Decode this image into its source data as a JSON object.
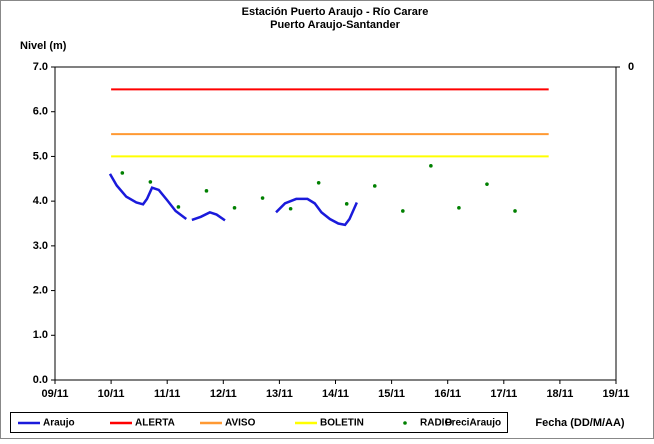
{
  "chart_data": {
    "type": "line",
    "title": "Estación Puerto Araujo - Río Carare",
    "subtitle": "Puerto Araujo-Santander",
    "y_label": "Nivel (m)",
    "x_label": "Fecha (DD/M/AA)",
    "xlim": [
      9,
      19
    ],
    "xticks": [
      {
        "value": 9,
        "label": "09/11"
      },
      {
        "value": 10,
        "label": "10/11"
      },
      {
        "value": 11,
        "label": "11/11"
      },
      {
        "value": 12,
        "label": "12/11"
      },
      {
        "value": 13,
        "label": "13/11"
      },
      {
        "value": 14,
        "label": "14/11"
      },
      {
        "value": 15,
        "label": "15/11"
      },
      {
        "value": 16,
        "label": "16/11"
      },
      {
        "value": 17,
        "label": "17/11"
      },
      {
        "value": 18,
        "label": "18/11"
      },
      {
        "value": 19,
        "label": "19/11"
      }
    ],
    "ylim": [
      0,
      7
    ],
    "yticks": [
      {
        "value": 0,
        "label": "0.0"
      },
      {
        "value": 1,
        "label": "1.0"
      },
      {
        "value": 2,
        "label": "2.0"
      },
      {
        "value": 3,
        "label": "3.0"
      },
      {
        "value": 4,
        "label": "4.0"
      },
      {
        "value": 5,
        "label": "5.0"
      },
      {
        "value": 6,
        "label": "6.0"
      },
      {
        "value": 7,
        "label": "7.0"
      }
    ],
    "y2ticks": [
      0
    ],
    "series": [
      {
        "name": "Araujo",
        "color": "#1a1adb",
        "kind": "line",
        "x": [
          9.98,
          10.1,
          10.27,
          10.45,
          10.57,
          10.64,
          10.73,
          10.85,
          11.0,
          11.15,
          11.34,
          null,
          11.44,
          11.6,
          11.76,
          11.88,
          12.03,
          null,
          12.94,
          13.1,
          13.3,
          13.5,
          13.63,
          13.75,
          13.9,
          14.05,
          14.17,
          14.25,
          14.38
        ],
        "values": [
          4.61,
          4.35,
          4.1,
          3.97,
          3.93,
          4.05,
          4.3,
          4.25,
          4.02,
          3.78,
          3.6,
          null,
          3.58,
          3.65,
          3.75,
          3.7,
          3.57,
          null,
          3.75,
          3.95,
          4.05,
          4.05,
          3.95,
          3.75,
          3.6,
          3.5,
          3.47,
          3.6,
          3.97
        ]
      },
      {
        "name": "ALERTA",
        "color": "#ff0000",
        "kind": "line",
        "x": [
          10,
          17.8
        ],
        "values": [
          6.5,
          6.5
        ]
      },
      {
        "name": "AVISO",
        "color": "#ff9933",
        "kind": "line",
        "x": [
          10,
          17.8
        ],
        "values": [
          5.5,
          5.5
        ]
      },
      {
        "name": "BOLETIN",
        "color": "#ffff00",
        "kind": "line",
        "x": [
          10,
          17.8
        ],
        "values": [
          5.0,
          5.0
        ]
      },
      {
        "name": "RADIO",
        "color": "#008000",
        "kind": "dots",
        "x": [
          10.2,
          10.7,
          11.2,
          11.7,
          12.2,
          12.7,
          13.2,
          13.7,
          14.2,
          14.7,
          15.2,
          15.7,
          16.2,
          16.7,
          17.2
        ],
        "values": [
          4.63,
          4.43,
          3.87,
          4.23,
          3.85,
          4.07,
          3.83,
          4.41,
          3.94,
          4.34,
          3.78,
          4.79,
          3.85,
          4.38,
          3.78
        ]
      },
      {
        "name": "PreciAraujo",
        "kind": "none",
        "values": []
      }
    ]
  }
}
